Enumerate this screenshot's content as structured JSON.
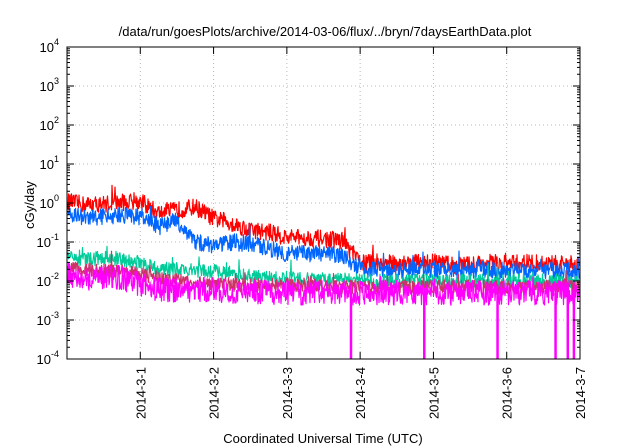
{
  "chart_data": {
    "type": "line",
    "title": "/data/run/goesPlots/archive/2014-03-06/flux/../bryn/7daysEarthData.plot",
    "xlabel": "Coordinated Universal Time (UTC)",
    "ylabel": "cGy/day",
    "yscale": "log",
    "ylim": [
      0.0001,
      10000
    ],
    "xlim": [
      "2014-02-28",
      "2014-03-07"
    ],
    "grid": true,
    "y_ticks": [
      {
        "value": 0.0001,
        "mantissa": "10",
        "exp": "-4"
      },
      {
        "value": 0.001,
        "mantissa": "10",
        "exp": "-3"
      },
      {
        "value": 0.01,
        "mantissa": "10",
        "exp": "-2"
      },
      {
        "value": 0.1,
        "mantissa": "10",
        "exp": "-1"
      },
      {
        "value": 1,
        "mantissa": "10",
        "exp": "0"
      },
      {
        "value": 10,
        "mantissa": "10",
        "exp": "1"
      },
      {
        "value": 100,
        "mantissa": "10",
        "exp": "2"
      },
      {
        "value": 1000,
        "mantissa": "10",
        "exp": "3"
      },
      {
        "value": 10000,
        "mantissa": "10",
        "exp": "4"
      }
    ],
    "x_ticks": [
      "2014-3-1",
      "2014-3-2",
      "2014-3-3",
      "2014-3-4",
      "2014-3-5",
      "2014-3-6",
      "2014-3-7"
    ],
    "series": [
      {
        "color": "#ff0000",
        "x": [
          "2014-02-28T00:00",
          "2014-02-28T06:00",
          "2014-02-28T12:00",
          "2014-02-28T18:00",
          "2014-03-01T00:00",
          "2014-03-01T06:00",
          "2014-03-01T12:00",
          "2014-03-01T18:00",
          "2014-03-02T00:00",
          "2014-03-02T06:00",
          "2014-03-02T12:00",
          "2014-03-02T18:00",
          "2014-03-03T00:00",
          "2014-03-03T06:00",
          "2014-03-03T12:00",
          "2014-03-03T18:00",
          "2014-03-04T00:00",
          "2014-03-04T06:00",
          "2014-03-04T12:00",
          "2014-03-04T18:00",
          "2014-03-05T00:00",
          "2014-03-05T06:00",
          "2014-03-05T12:00",
          "2014-03-05T18:00",
          "2014-03-06T00:00",
          "2014-03-06T06:00",
          "2014-03-06T12:00",
          "2014-03-06T18:00",
          "2014-03-07T00:00"
        ],
        "values": [
          1.1,
          0.9,
          0.95,
          1.05,
          1.1,
          0.55,
          0.65,
          0.8,
          0.4,
          0.3,
          0.2,
          0.18,
          0.13,
          0.13,
          0.12,
          0.11,
          0.03,
          0.03,
          0.028,
          0.03,
          0.03,
          0.026,
          0.026,
          0.03,
          0.027,
          0.03,
          0.028,
          0.027,
          0.025
        ]
      },
      {
        "color": "#0066ff",
        "x": [
          "2014-02-28T00:00",
          "2014-02-28T06:00",
          "2014-02-28T12:00",
          "2014-02-28T18:00",
          "2014-03-01T00:00",
          "2014-03-01T06:00",
          "2014-03-01T12:00",
          "2014-03-01T18:00",
          "2014-03-02T00:00",
          "2014-03-02T06:00",
          "2014-03-02T12:00",
          "2014-03-02T18:00",
          "2014-03-03T00:00",
          "2014-03-03T06:00",
          "2014-03-03T12:00",
          "2014-03-03T18:00",
          "2014-03-04T00:00",
          "2014-03-04T06:00",
          "2014-03-04T12:00",
          "2014-03-04T18:00",
          "2014-03-05T00:00",
          "2014-03-05T06:00",
          "2014-03-05T12:00",
          "2014-03-05T18:00",
          "2014-03-06T00:00",
          "2014-03-06T06:00",
          "2014-03-06T12:00",
          "2014-03-06T18:00",
          "2014-03-07T00:00"
        ],
        "values": [
          0.6,
          0.4,
          0.45,
          0.5,
          0.45,
          0.25,
          0.35,
          0.1,
          0.08,
          0.1,
          0.09,
          0.07,
          0.05,
          0.05,
          0.05,
          0.045,
          0.02,
          0.02,
          0.018,
          0.02,
          0.02,
          0.018,
          0.018,
          0.02,
          0.018,
          0.02,
          0.019,
          0.018,
          0.017
        ]
      },
      {
        "color": "#00cc99",
        "x": [
          "2014-02-28T00:00",
          "2014-02-28T06:00",
          "2014-02-28T12:00",
          "2014-02-28T18:00",
          "2014-03-01T00:00",
          "2014-03-01T06:00",
          "2014-03-01T12:00",
          "2014-03-01T18:00",
          "2014-03-02T00:00",
          "2014-03-02T06:00",
          "2014-03-02T12:00",
          "2014-03-02T18:00",
          "2014-03-03T00:00",
          "2014-03-03T06:00",
          "2014-03-03T12:00",
          "2014-03-03T18:00",
          "2014-03-04T00:00",
          "2014-03-04T06:00",
          "2014-03-04T12:00",
          "2014-03-04T18:00",
          "2014-03-05T00:00",
          "2014-03-05T06:00",
          "2014-03-05T12:00",
          "2014-03-05T18:00",
          "2014-03-06T00:00",
          "2014-03-06T06:00",
          "2014-03-06T12:00",
          "2014-03-06T18:00",
          "2014-03-07T00:00"
        ],
        "values": [
          0.04,
          0.035,
          0.04,
          0.035,
          0.03,
          0.02,
          0.02,
          0.018,
          0.018,
          0.015,
          0.013,
          0.012,
          0.012,
          0.011,
          0.011,
          0.011,
          0.01,
          0.01,
          0.01,
          0.01,
          0.01,
          0.01,
          0.01,
          0.01,
          0.01,
          0.01,
          0.01,
          0.01,
          0.01
        ]
      },
      {
        "color": "#cc3366",
        "x": [
          "2014-02-28T00:00",
          "2014-02-28T06:00",
          "2014-02-28T12:00",
          "2014-02-28T18:00",
          "2014-03-01T00:00",
          "2014-03-01T06:00",
          "2014-03-01T12:00",
          "2014-03-01T18:00",
          "2014-03-02T00:00",
          "2014-03-02T06:00",
          "2014-03-02T12:00",
          "2014-03-02T18:00",
          "2014-03-03T00:00",
          "2014-03-03T06:00",
          "2014-03-03T12:00",
          "2014-03-03T18:00",
          "2014-03-04T00:00",
          "2014-03-04T06:00",
          "2014-03-04T12:00",
          "2014-03-04T18:00",
          "2014-03-05T00:00",
          "2014-03-05T06:00",
          "2014-03-05T12:00",
          "2014-03-05T18:00",
          "2014-03-06T00:00",
          "2014-03-06T06:00",
          "2014-03-06T12:00",
          "2014-03-06T18:00",
          "2014-03-07T00:00"
        ],
        "values": [
          0.02,
          0.02,
          0.018,
          0.018,
          0.015,
          0.012,
          0.01,
          0.009,
          0.009,
          0.008,
          0.008,
          0.008,
          0.008,
          0.008,
          0.007,
          0.007,
          0.007,
          0.007,
          0.007,
          0.007,
          0.007,
          0.007,
          0.007,
          0.007,
          0.007,
          0.007,
          0.007,
          0.007,
          0.007
        ]
      },
      {
        "color": "#ff00ff",
        "x": [
          "2014-02-28T00:00",
          "2014-02-28T06:00",
          "2014-02-28T12:00",
          "2014-02-28T18:00",
          "2014-03-01T00:00",
          "2014-03-01T06:00",
          "2014-03-01T12:00",
          "2014-03-01T18:00",
          "2014-03-02T00:00",
          "2014-03-02T06:00",
          "2014-03-02T12:00",
          "2014-03-02T18:00",
          "2014-03-03T00:00",
          "2014-03-03T06:00",
          "2014-03-03T12:00",
          "2014-03-03T18:00",
          "2014-03-04T00:00",
          "2014-03-04T06:00",
          "2014-03-04T12:00",
          "2014-03-04T18:00",
          "2014-03-05T00:00",
          "2014-03-05T06:00",
          "2014-03-05T12:00",
          "2014-03-05T18:00",
          "2014-03-06T00:00",
          "2014-03-06T06:00",
          "2014-03-06T12:00",
          "2014-03-06T18:00",
          "2014-03-07T00:00"
        ],
        "values": [
          0.015,
          0.012,
          0.013,
          0.012,
          0.008,
          0.006,
          0.006,
          0.006,
          0.006,
          0.005,
          0.005,
          0.005,
          0.005,
          0.005,
          0.005,
          0.005,
          0.005,
          0.005,
          0.005,
          0.005,
          0.005,
          0.005,
          0.005,
          0.005,
          0.005,
          0.005,
          0.005,
          0.005,
          0.005
        ],
        "drops_to_axis": [
          "2014-03-03T21:00",
          "2014-03-04T21:00",
          "2014-03-05T21:00",
          "2014-03-06T16:00",
          "2014-03-06T20:00",
          "2014-03-06T22:00"
        ]
      }
    ]
  }
}
